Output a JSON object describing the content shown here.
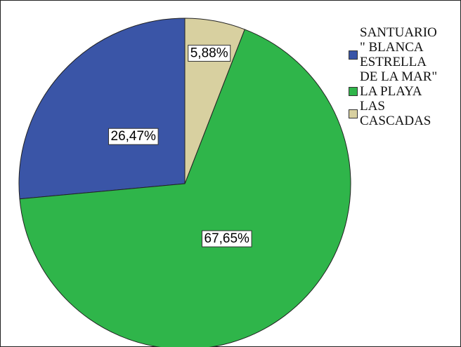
{
  "chart_data": {
    "type": "pie",
    "series": [
      {
        "name": "SANTUARIO\n\" BLANCA\nESTRELLA\nDE LA MAR\"",
        "color": "#3a55a7"
      },
      {
        "name": "LA PLAYA",
        "color": "#2fb54a"
      },
      {
        "name": "LAS\nCASCADAS",
        "color": "#d8d0a0"
      }
    ],
    "values": [
      26.47,
      67.65,
      5.88
    ],
    "value_labels": [
      "26,47%",
      "67,65%",
      "5,88%"
    ]
  }
}
